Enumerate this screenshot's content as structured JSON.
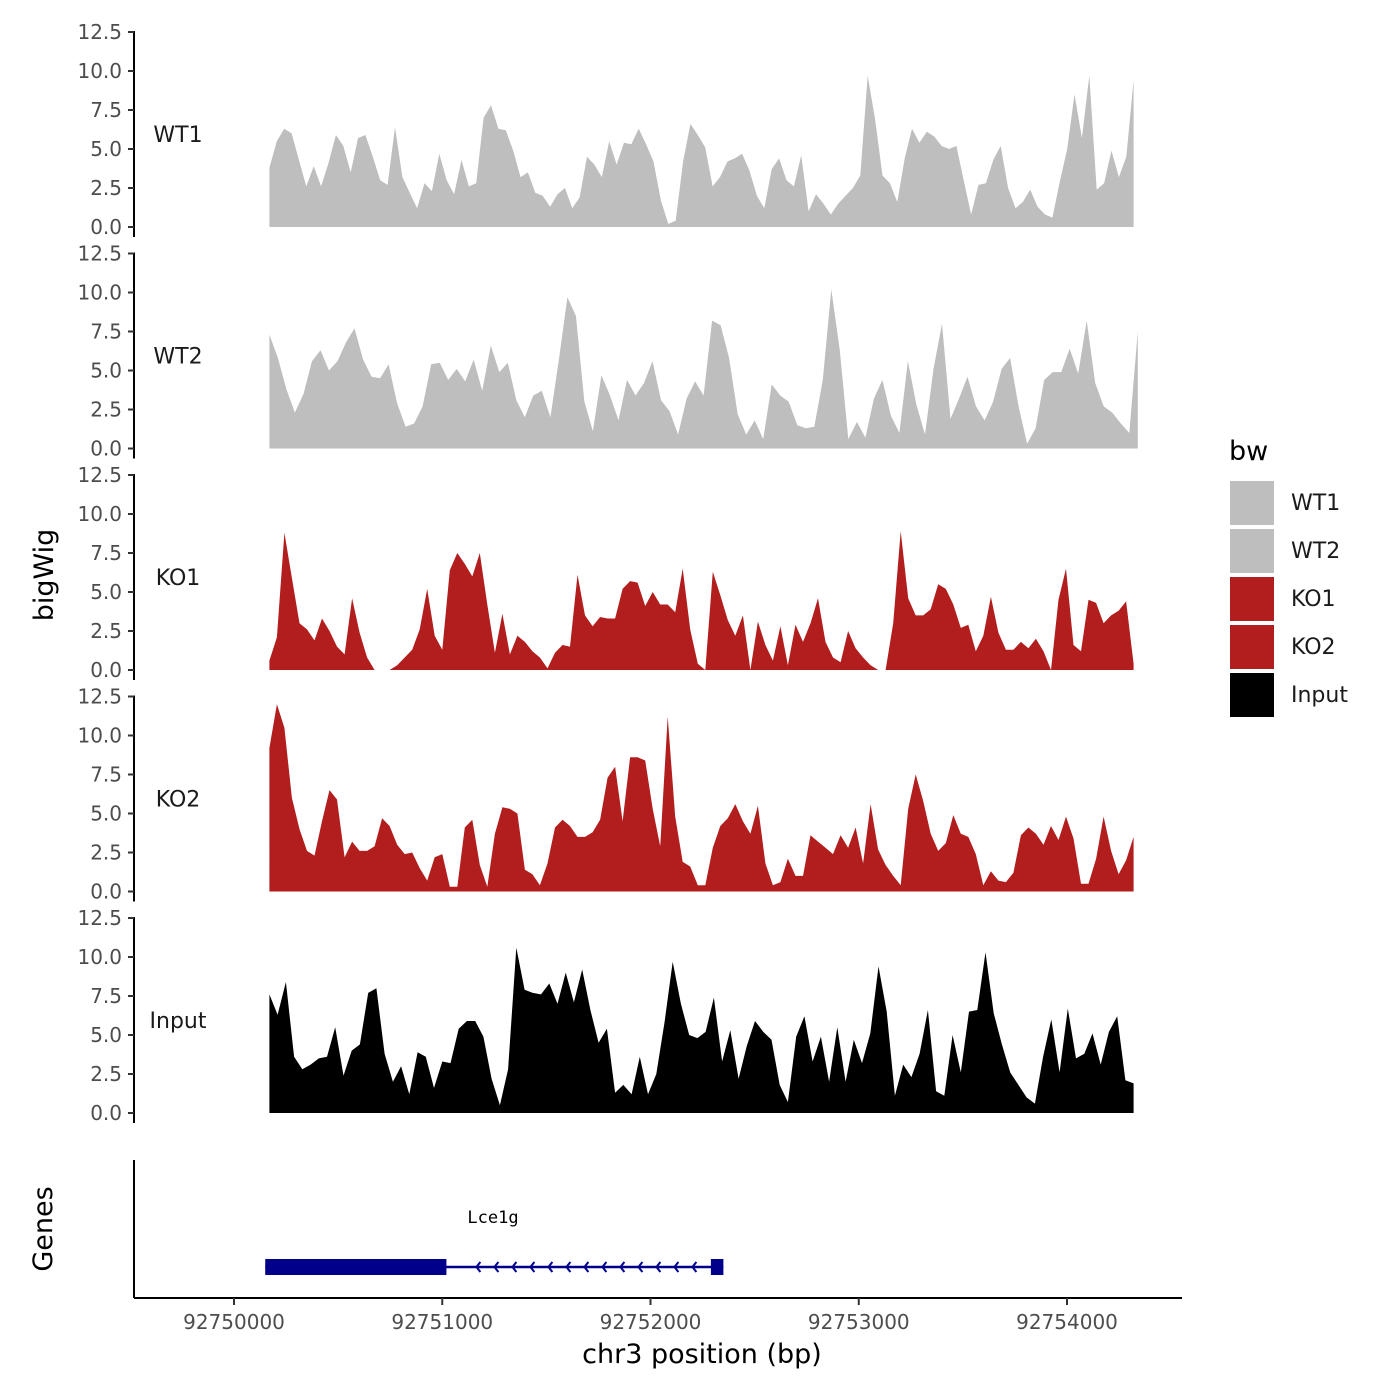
{
  "chart_data": {
    "type": "area",
    "ylabel": "bigWig",
    "xlabel": "chr3 position (bp)",
    "ylim": [
      0,
      12.5
    ],
    "yticks": [
      "0.0",
      "2.5",
      "5.0",
      "7.5",
      "10.0",
      "12.5"
    ],
    "yticks_values": [
      0,
      2.5,
      5,
      7.5,
      10,
      12.5
    ],
    "xlim": [
      92749650,
      92754550
    ],
    "xticks": [
      "92750000",
      "92751000",
      "92752000",
      "92753000",
      "92754000"
    ],
    "xticks_values": [
      92750000,
      92751000,
      92752000,
      92753000,
      92754000
    ],
    "series": [
      {
        "name": "WT1",
        "color": "#bebebe",
        "x_start": 92750170,
        "x_end": 92754320,
        "values": [
          3.8,
          5.5,
          6.3,
          6.0,
          4.3,
          2.6,
          3.9,
          2.6,
          4.1,
          5.9,
          5.2,
          3.5,
          5.7,
          5.9,
          4.5,
          3.0,
          2.7,
          6.4,
          3.2,
          2.2,
          1.2,
          2.8,
          2.3,
          4.7,
          3.0,
          2.1,
          4.3,
          2.6,
          2.8,
          7.0,
          7.8,
          6.3,
          6.2,
          4.9,
          3.2,
          3.5,
          2.2,
          2.0,
          1.3,
          2.1,
          2.5,
          1.2,
          1.9,
          4.5,
          4.0,
          3.2,
          5.5,
          4.0,
          5.4,
          5.3,
          6.3,
          5.3,
          4.2,
          1.7,
          0.2,
          0.4,
          4.2,
          6.6,
          5.9,
          5.1,
          2.6,
          3.2,
          4.2,
          4.4,
          4.7,
          3.6,
          2.0,
          1.2,
          3.7,
          4.4,
          3.0,
          2.6,
          4.6,
          1.0,
          2.1,
          1.5,
          0.8,
          1.5,
          2.0,
          2.5,
          3.3,
          9.7,
          6.9,
          3.3,
          2.8,
          1.6,
          4.4,
          6.3,
          5.4,
          6.1,
          5.8,
          5.2,
          5.0,
          5.2,
          3.0,
          0.8,
          2.7,
          2.8,
          4.3,
          5.2,
          2.5,
          1.2,
          1.6,
          2.4,
          1.3,
          0.8,
          0.6,
          2.9,
          5.0,
          8.5,
          5.7,
          9.7,
          2.4,
          2.8,
          4.9,
          3.2,
          4.5,
          9.4
        ]
      },
      {
        "name": "WT2",
        "color": "#bebebe",
        "x_start": 92750170,
        "x_end": 92754340,
        "values": [
          7.3,
          5.8,
          3.8,
          2.3,
          3.5,
          5.6,
          6.3,
          5.0,
          5.6,
          6.8,
          7.7,
          5.7,
          4.6,
          4.5,
          5.4,
          2.9,
          1.4,
          1.6,
          2.7,
          5.4,
          5.5,
          4.4,
          5.1,
          4.3,
          5.7,
          3.7,
          6.6,
          4.9,
          5.5,
          3.1,
          2.0,
          3.4,
          3.7,
          2.0,
          5.7,
          9.7,
          8.5,
          3.0,
          1.1,
          4.7,
          3.4,
          1.8,
          4.4,
          3.4,
          4.2,
          5.6,
          3.1,
          2.4,
          0.9,
          3.2,
          4.3,
          3.4,
          8.2,
          7.9,
          5.8,
          2.2,
          0.9,
          1.8,
          0.6,
          4.1,
          3.4,
          3.0,
          1.5,
          1.3,
          1.4,
          4.4,
          10.2,
          6.3,
          0.6,
          1.7,
          0.7,
          3.2,
          4.4,
          2.1,
          1.0,
          5.6,
          2.8,
          0.9,
          5.1,
          8.0,
          1.9,
          3.2,
          4.6,
          2.7,
          1.8,
          3.0,
          5.1,
          5.8,
          2.7,
          0.3,
          1.3,
          4.4,
          4.9,
          4.9,
          6.4,
          4.8,
          8.2,
          4.2,
          2.7,
          2.3,
          1.6,
          1.0,
          7.5
        ]
      },
      {
        "name": "KO1",
        "color": "#b21e1e",
        "x_start": 92750170,
        "x_end": 92754320,
        "values": [
          0.6,
          2.1,
          8.8,
          5.9,
          3.0,
          2.6,
          1.9,
          3.3,
          2.5,
          1.5,
          1.0,
          4.6,
          2.4,
          0.8,
          0.0,
          0.0,
          0.0,
          0.3,
          0.8,
          1.3,
          2.6,
          5.2,
          2.2,
          1.3,
          6.4,
          7.5,
          6.8,
          6.0,
          7.5,
          4.2,
          1.1,
          3.6,
          1.0,
          2.2,
          1.8,
          1.2,
          0.8,
          0.1,
          1.1,
          1.6,
          1.5,
          6.1,
          3.5,
          2.8,
          3.4,
          3.3,
          3.3,
          5.2,
          5.7,
          5.6,
          4.1,
          5.0,
          4.2,
          4.2,
          3.7,
          6.5,
          2.6,
          0.4,
          0.0,
          6.3,
          4.8,
          3.2,
          2.2,
          3.5,
          0.0,
          3.1,
          1.6,
          0.6,
          2.8,
          0.3,
          2.9,
          1.8,
          3.0,
          4.6,
          1.8,
          0.8,
          0.5,
          2.5,
          1.4,
          0.8,
          0.3,
          0.0,
          0.0,
          3.0,
          8.9,
          4.6,
          3.5,
          3.5,
          3.9,
          5.5,
          5.2,
          4.2,
          2.7,
          2.9,
          1.2,
          2.2,
          4.7,
          2.4,
          1.3,
          1.3,
          1.8,
          1.4,
          2.0,
          1.2,
          0.0,
          4.5,
          6.5,
          1.6,
          1.2,
          4.5,
          4.3,
          3.0,
          3.5,
          3.8,
          4.4,
          0.4
        ]
      },
      {
        "name": "KO2",
        "color": "#b21e1e",
        "x_start": 92750170,
        "x_end": 92754320,
        "values": [
          9.2,
          12.0,
          10.5,
          6.0,
          4.0,
          2.6,
          2.3,
          4.5,
          6.5,
          5.9,
          2.2,
          3.2,
          2.6,
          2.6,
          2.9,
          4.7,
          4.2,
          3.0,
          2.4,
          2.5,
          1.5,
          0.7,
          2.2,
          2.4,
          0.3,
          0.3,
          4.1,
          4.6,
          1.7,
          0.3,
          3.7,
          5.4,
          5.3,
          5.0,
          1.4,
          1.1,
          0.4,
          1.8,
          4.1,
          4.6,
          4.2,
          3.5,
          3.5,
          3.8,
          4.6,
          7.3,
          8.0,
          4.5,
          8.6,
          8.6,
          8.4,
          5.3,
          2.9,
          11.2,
          4.8,
          1.9,
          1.6,
          0.4,
          0.4,
          2.8,
          4.2,
          4.7,
          5.6,
          4.5,
          3.7,
          5.5,
          1.8,
          0.4,
          0.6,
          2.1,
          1.0,
          1.0,
          3.6,
          3.2,
          2.8,
          2.4,
          3.6,
          2.8,
          4.1,
          1.8,
          5.6,
          2.7,
          1.7,
          1.0,
          0.4,
          5.3,
          7.5,
          5.8,
          3.7,
          2.6,
          3.1,
          4.9,
          3.7,
          3.5,
          2.4,
          0.4,
          1.3,
          0.7,
          0.6,
          1.2,
          3.6,
          4.1,
          3.7,
          3.0,
          4.2,
          3.3,
          4.8,
          3.4,
          0.5,
          0.5,
          2.1,
          4.8,
          2.6,
          1.1,
          2.0,
          3.5
        ]
      },
      {
        "name": "Input",
        "color": "#000000",
        "x_start": 92750170,
        "x_end": 92754320,
        "values": [
          7.6,
          6.3,
          8.4,
          3.6,
          2.8,
          3.1,
          3.5,
          3.6,
          5.5,
          2.4,
          4.0,
          4.4,
          7.7,
          8.0,
          3.8,
          2.0,
          3.0,
          1.2,
          3.9,
          3.6,
          1.6,
          3.3,
          3.2,
          5.4,
          5.9,
          5.9,
          4.9,
          2.2,
          0.5,
          2.8,
          10.6,
          7.9,
          7.7,
          7.6,
          8.3,
          7.0,
          9.0,
          7.1,
          9.2,
          6.6,
          4.5,
          5.4,
          1.3,
          1.8,
          1.2,
          3.6,
          1.2,
          2.5,
          5.8,
          9.7,
          7.0,
          5.0,
          4.8,
          5.2,
          7.4,
          3.3,
          5.3,
          2.2,
          4.3,
          5.9,
          5.2,
          4.7,
          1.8,
          0.7,
          4.9,
          6.2,
          3.3,
          4.9,
          2.0,
          5.5,
          2.0,
          4.7,
          3.2,
          5.1,
          9.4,
          6.5,
          1.1,
          3.1,
          2.3,
          3.8,
          6.6,
          1.4,
          1.1,
          5.0,
          2.6,
          6.5,
          6.6,
          10.3,
          6.4,
          4.4,
          2.6,
          1.8,
          1.0,
          0.6,
          3.6,
          6.0,
          2.6,
          6.7,
          3.5,
          3.8,
          5.1,
          3.1,
          5.2,
          6.2,
          2.1,
          1.9
        ]
      }
    ],
    "legend": {
      "title": "bw",
      "entries": [
        {
          "label": "WT1",
          "color": "#bebebe"
        },
        {
          "label": "WT2",
          "color": "#bebebe"
        },
        {
          "label": "KO1",
          "color": "#b21e1e"
        },
        {
          "label": "KO2",
          "color": "#b21e1e"
        },
        {
          "label": "Input",
          "color": "#000000"
        }
      ]
    },
    "genes_track": {
      "label": "Genes",
      "genes": [
        {
          "name": "Lce1g",
          "strand": "-",
          "start": 92750150,
          "end": 92752350,
          "exons": [
            [
              92750150,
              92751020
            ],
            [
              92752290,
              92752350
            ]
          ],
          "color": "#00008b"
        }
      ]
    }
  }
}
